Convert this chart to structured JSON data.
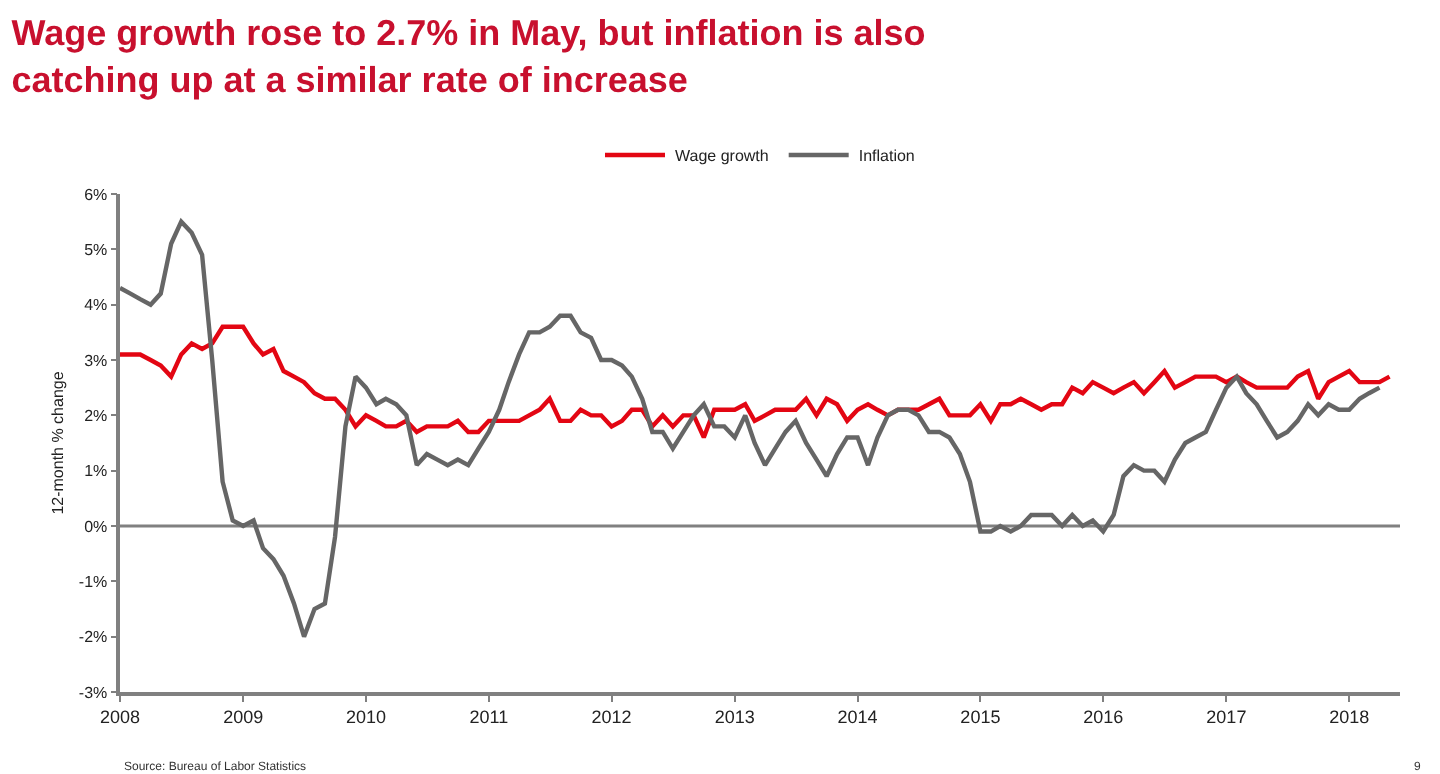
{
  "chart_data": {
    "type": "line",
    "title": "Wage growth rose to 2.7% in May, but inflation is also catching up at a similar rate of increase",
    "ylabel": "12-month % change",
    "annotations": [
      "Source: Bureau of Labor Statistics",
      "9"
    ],
    "legend": "top",
    "grid": false,
    "marker": "none",
    "line_style": "solid",
    "xlim": [
      "2008-01-01",
      "2018-06-01"
    ],
    "xticks": [
      "2008",
      "2009",
      "2010",
      "2011",
      "2012",
      "2013",
      "2014",
      "2015",
      "2016",
      "2017",
      "2018"
    ],
    "ylim": [
      -3,
      6
    ],
    "yticks": [
      {
        "value": -3,
        "label": "-3%"
      },
      {
        "value": -2,
        "label": "-2%"
      },
      {
        "value": -1,
        "label": "-1%"
      },
      {
        "value": 0,
        "label": "0%"
      },
      {
        "value": 1,
        "label": "1%"
      },
      {
        "value": 2,
        "label": "2%"
      },
      {
        "value": 3,
        "label": "3%"
      },
      {
        "value": 4,
        "label": "4%"
      },
      {
        "value": 5,
        "label": "5%"
      },
      {
        "value": 6,
        "label": "6%"
      }
    ],
    "ref_lines": [
      {
        "axis": "y",
        "value": 0,
        "color": "#808080"
      }
    ],
    "series": [
      {
        "name": "Wage growth",
        "color": "#e30613",
        "x": [
          "2008-01",
          "2008-02",
          "2008-03",
          "2008-04",
          "2008-05",
          "2008-06",
          "2008-07",
          "2008-08",
          "2008-09",
          "2008-10",
          "2008-11",
          "2008-12",
          "2009-01",
          "2009-02",
          "2009-03",
          "2009-04",
          "2009-05",
          "2009-06",
          "2009-07",
          "2009-08",
          "2009-09",
          "2009-10",
          "2009-11",
          "2009-12",
          "2010-01",
          "2010-02",
          "2010-03",
          "2010-04",
          "2010-05",
          "2010-06",
          "2010-07",
          "2010-08",
          "2010-09",
          "2010-10",
          "2010-11",
          "2010-12",
          "2011-01",
          "2011-02",
          "2011-03",
          "2011-04",
          "2011-05",
          "2011-06",
          "2011-07",
          "2011-08",
          "2011-09",
          "2011-10",
          "2011-11",
          "2011-12",
          "2012-01",
          "2012-02",
          "2012-03",
          "2012-04",
          "2012-05",
          "2012-06",
          "2012-07",
          "2012-08",
          "2012-09",
          "2012-10",
          "2012-11",
          "2012-12",
          "2013-01",
          "2013-02",
          "2013-03",
          "2013-04",
          "2013-05",
          "2013-06",
          "2013-07",
          "2013-08",
          "2013-09",
          "2013-10",
          "2013-11",
          "2013-12",
          "2014-01",
          "2014-02",
          "2014-03",
          "2014-04",
          "2014-05",
          "2014-06",
          "2014-07",
          "2014-08",
          "2014-09",
          "2014-10",
          "2014-11",
          "2014-12",
          "2015-01",
          "2015-02",
          "2015-03",
          "2015-04",
          "2015-05",
          "2015-06",
          "2015-07",
          "2015-08",
          "2015-09",
          "2015-10",
          "2015-11",
          "2015-12",
          "2016-01",
          "2016-02",
          "2016-03",
          "2016-04",
          "2016-05",
          "2016-06",
          "2016-07",
          "2016-08",
          "2016-09",
          "2016-10",
          "2016-11",
          "2016-12",
          "2017-01",
          "2017-02",
          "2017-03",
          "2017-04",
          "2017-05",
          "2017-06",
          "2017-07",
          "2017-08",
          "2017-09",
          "2017-10",
          "2017-11",
          "2017-12",
          "2018-01",
          "2018-02",
          "2018-03",
          "2018-04",
          "2018-05"
        ],
        "values": [
          3.1,
          3.1,
          3.1,
          3.0,
          2.9,
          2.7,
          3.1,
          3.3,
          3.2,
          3.3,
          3.6,
          3.6,
          3.6,
          3.3,
          3.1,
          3.2,
          2.8,
          2.7,
          2.6,
          2.4,
          2.3,
          2.3,
          2.1,
          1.8,
          2.0,
          1.9,
          1.8,
          1.8,
          1.9,
          1.7,
          1.8,
          1.8,
          1.8,
          1.9,
          1.7,
          1.7,
          1.9,
          1.9,
          1.9,
          1.9,
          2.0,
          2.1,
          2.3,
          1.9,
          1.9,
          2.1,
          2.0,
          2.0,
          1.8,
          1.9,
          2.1,
          2.1,
          1.8,
          2.0,
          1.8,
          2.0,
          2.0,
          1.6,
          2.1,
          2.1,
          2.1,
          2.2,
          1.9,
          2.0,
          2.1,
          2.1,
          2.1,
          2.3,
          2.0,
          2.3,
          2.2,
          1.9,
          2.1,
          2.2,
          2.1,
          2.0,
          2.1,
          2.1,
          2.1,
          2.2,
          2.3,
          2.0,
          2.0,
          2.0,
          2.2,
          1.9,
          2.2,
          2.2,
          2.3,
          2.2,
          2.1,
          2.2,
          2.2,
          2.5,
          2.4,
          2.6,
          2.5,
          2.4,
          2.5,
          2.6,
          2.4,
          2.6,
          2.8,
          2.5,
          2.6,
          2.7,
          2.7,
          2.7,
          2.6,
          2.7,
          2.6,
          2.5,
          2.5,
          2.5,
          2.5,
          2.7,
          2.8,
          2.3,
          2.6,
          2.7,
          2.8,
          2.6,
          2.6,
          2.6,
          2.7
        ]
      },
      {
        "name": "Inflation",
        "color": "#666666",
        "x": [
          "2008-01",
          "2008-02",
          "2008-03",
          "2008-04",
          "2008-05",
          "2008-06",
          "2008-07",
          "2008-08",
          "2008-09",
          "2008-10",
          "2008-11",
          "2008-12",
          "2009-01",
          "2009-02",
          "2009-03",
          "2009-04",
          "2009-05",
          "2009-06",
          "2009-07",
          "2009-08",
          "2009-09",
          "2009-10",
          "2009-11",
          "2009-12",
          "2010-01",
          "2010-02",
          "2010-03",
          "2010-04",
          "2010-05",
          "2010-06",
          "2010-07",
          "2010-08",
          "2010-09",
          "2010-10",
          "2010-11",
          "2010-12",
          "2011-01",
          "2011-02",
          "2011-03",
          "2011-04",
          "2011-05",
          "2011-06",
          "2011-07",
          "2011-08",
          "2011-09",
          "2011-10",
          "2011-11",
          "2011-12",
          "2012-01",
          "2012-02",
          "2012-03",
          "2012-04",
          "2012-05",
          "2012-06",
          "2012-07",
          "2012-08",
          "2012-09",
          "2012-10",
          "2012-11",
          "2012-12",
          "2013-01",
          "2013-02",
          "2013-03",
          "2013-04",
          "2013-05",
          "2013-06",
          "2013-07",
          "2013-08",
          "2013-09",
          "2013-10",
          "2013-11",
          "2013-12",
          "2014-01",
          "2014-02",
          "2014-03",
          "2014-04",
          "2014-05",
          "2014-06",
          "2014-07",
          "2014-08",
          "2014-09",
          "2014-10",
          "2014-11",
          "2014-12",
          "2015-01",
          "2015-02",
          "2015-03",
          "2015-04",
          "2015-05",
          "2015-06",
          "2015-07",
          "2015-08",
          "2015-09",
          "2015-10",
          "2015-11",
          "2015-12",
          "2016-01",
          "2016-02",
          "2016-03",
          "2016-04",
          "2016-05",
          "2016-06",
          "2016-07",
          "2016-08",
          "2016-09",
          "2016-10",
          "2016-11",
          "2016-12",
          "2017-01",
          "2017-02",
          "2017-03",
          "2017-04",
          "2017-05",
          "2017-06",
          "2017-07",
          "2017-08",
          "2017-09",
          "2017-10",
          "2017-11",
          "2017-12",
          "2018-01",
          "2018-02",
          "2018-03",
          "2018-04"
        ],
        "values": [
          4.3,
          4.2,
          4.1,
          4.0,
          4.2,
          5.1,
          5.5,
          5.3,
          4.9,
          3.0,
          0.8,
          0.1,
          0.0,
          0.1,
          -0.4,
          -0.6,
          -0.9,
          -1.4,
          -2.0,
          -1.5,
          -1.4,
          -0.2,
          1.8,
          2.7,
          2.5,
          2.2,
          2.3,
          2.2,
          2.0,
          1.1,
          1.3,
          1.2,
          1.1,
          1.2,
          1.1,
          1.4,
          1.7,
          2.1,
          2.6,
          3.1,
          3.5,
          3.5,
          3.6,
          3.8,
          3.8,
          3.5,
          3.4,
          3.0,
          3.0,
          2.9,
          2.7,
          2.3,
          1.7,
          1.7,
          1.4,
          1.7,
          2.0,
          2.2,
          1.8,
          1.8,
          1.6,
          2.0,
          1.5,
          1.1,
          1.4,
          1.7,
          1.9,
          1.5,
          1.2,
          0.9,
          1.3,
          1.6,
          1.6,
          1.1,
          1.6,
          2.0,
          2.1,
          2.1,
          2.0,
          1.7,
          1.7,
          1.6,
          1.3,
          0.8,
          -0.1,
          -0.1,
          0.0,
          -0.1,
          0.0,
          0.2,
          0.2,
          0.2,
          0.0,
          0.2,
          0.0,
          0.1,
          -0.1,
          0.2,
          0.9,
          1.1,
          1.0,
          1.0,
          0.8,
          1.2,
          1.5,
          1.6,
          1.7,
          2.1,
          2.5,
          2.7,
          2.4,
          2.2,
          1.9,
          1.6,
          1.7,
          1.9,
          2.2,
          2.0,
          2.2,
          2.1,
          2.1,
          2.3,
          2.4,
          2.5
        ]
      }
    ]
  }
}
